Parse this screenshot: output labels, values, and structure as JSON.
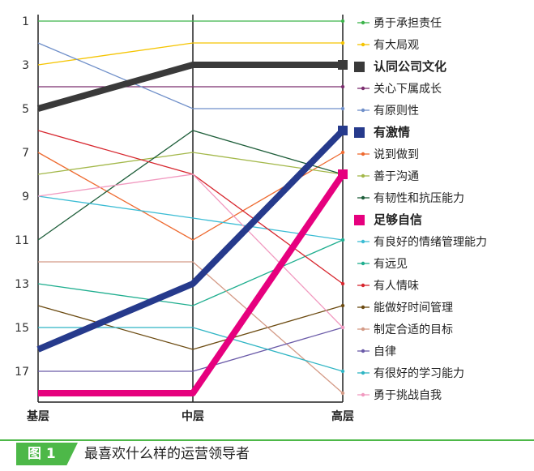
{
  "chart_data": {
    "type": "line",
    "categories": [
      "基层",
      "中层",
      "高层"
    ],
    "ylim": [
      1,
      18
    ],
    "y_reversed": true,
    "yticks": [
      1,
      3,
      5,
      7,
      9,
      11,
      13,
      15,
      17
    ],
    "grid": false,
    "legend_position": "right",
    "series": [
      {
        "name": "勇于承担责任",
        "values": [
          1,
          1,
          1
        ],
        "color": "#3cb44b",
        "bold": false
      },
      {
        "name": "有大局观",
        "values": [
          3,
          2,
          2
        ],
        "color": "#f5c400",
        "bold": false
      },
      {
        "name": "认同公司文化",
        "values": [
          5,
          3,
          3
        ],
        "color": "#3a3a3a",
        "bold": true
      },
      {
        "name": "关心下属成长",
        "values": [
          4,
          4,
          4
        ],
        "color": "#7b2d6e",
        "bold": false
      },
      {
        "name": "有原则性",
        "values": [
          2,
          5,
          5
        ],
        "color": "#6f8fc9",
        "bold": false
      },
      {
        "name": "有激情",
        "values": [
          16,
          13,
          6
        ],
        "color": "#263a8c",
        "bold": true
      },
      {
        "name": "说到做到",
        "values": [
          7,
          11,
          7
        ],
        "color": "#ee6a30",
        "bold": false
      },
      {
        "name": "善于沟通",
        "values": [
          8,
          7,
          8
        ],
        "color": "#a3b84a",
        "bold": false
      },
      {
        "name": "有韧性和抗压能力",
        "values": [
          11,
          6,
          8
        ],
        "color": "#1e5e3a",
        "bold": false
      },
      {
        "name": "足够自信",
        "values": [
          18,
          18,
          8
        ],
        "color": "#e6007e",
        "bold": true
      },
      {
        "name": "有良好的情绪管理能力",
        "values": [
          9,
          10,
          11
        ],
        "color": "#3bbcd4",
        "bold": false
      },
      {
        "name": "有远见",
        "values": [
          13,
          14,
          11
        ],
        "color": "#1fae8f",
        "bold": false
      },
      {
        "name": "有人情味",
        "values": [
          6,
          8,
          13
        ],
        "color": "#d7262e",
        "bold": false
      },
      {
        "name": "能做好时间管理",
        "values": [
          14,
          16,
          14
        ],
        "color": "#6b4a10",
        "bold": false
      },
      {
        "name": "制定合适的目标",
        "values": [
          12,
          12,
          18
        ],
        "color": "#d49a86",
        "bold": false
      },
      {
        "name": "自律",
        "values": [
          17,
          17,
          15
        ],
        "color": "#6a5aa8",
        "bold": false
      },
      {
        "name": "有很好的学习能力",
        "values": [
          15,
          15,
          17
        ],
        "color": "#2fb5c4",
        "bold": false
      },
      {
        "name": "勇于挑战自我",
        "values": [
          9,
          8,
          15
        ],
        "color": "#f19ac0",
        "bold": false
      }
    ]
  },
  "caption": {
    "tag": "图 1",
    "title": "最喜欢什么样的运营领导者"
  }
}
